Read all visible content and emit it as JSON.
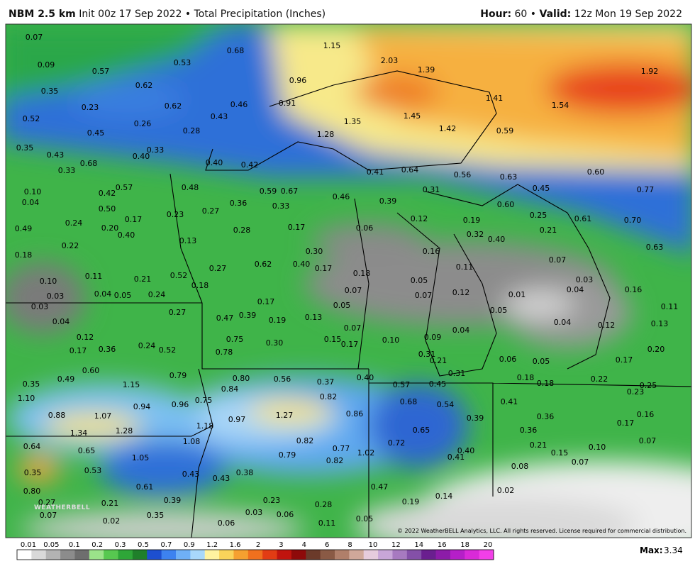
{
  "header": {
    "model": "NBM 2.5 km",
    "init": "Init 00z 17 Sep 2022",
    "separator": "•",
    "product": "Total Precipitation (Inches)",
    "hour_label": "Hour:",
    "hour": "60",
    "valid_label": "Valid:",
    "valid": "12z Mon 19 Sep 2022"
  },
  "footer": {
    "copyright": "© 2022 WeatherBELL Analytics, LLC. All rights reserved. License required for commercial distribution.",
    "logo": "WEATHERBELL",
    "max_label": "Max:",
    "max": "3.34"
  },
  "colorbar": {
    "ticks": [
      "0.01",
      "0.05",
      "0.1",
      "0.2",
      "0.3",
      "0.5",
      "0.7",
      "0.9",
      "1.2",
      "1.6",
      "2",
      "3",
      "4",
      "6",
      "8",
      "10",
      "12",
      "14",
      "16",
      "18",
      "20"
    ]
  },
  "map_labels": [
    "0.07",
    "0.09",
    "0.57",
    "0.53",
    "0.68",
    "1.15",
    "2.03",
    "1.39",
    "1.92",
    "0.35",
    "0.62",
    "0.96",
    "0.23",
    "0.62",
    "0.46",
    "0.91",
    "1.41",
    "1.54",
    "0.52",
    "0.26",
    "0.43",
    "1.45",
    "1.35",
    "1.42",
    "0.59",
    "0.45",
    "0.28",
    "1.28",
    "0.35",
    "0.43",
    "0.33",
    "0.40",
    "0.68",
    "0.40",
    "0.42",
    "0.33",
    "0.41",
    "0.64",
    "0.56",
    "0.63",
    "0.60",
    "0.10",
    "0.04",
    "0.42",
    "0.57",
    "0.48",
    "0.59",
    "0.67",
    "0.46",
    "0.31",
    "0.45",
    "0.77",
    "0.50",
    "0.36",
    "0.33",
    "0.39",
    "0.60",
    "0.49",
    "0.24",
    "0.20",
    "0.17",
    "0.23",
    "0.27",
    "0.40",
    "0.12",
    "0.25",
    "0.19",
    "0.61",
    "0.70",
    "0.28",
    "0.17",
    "0.06",
    "0.32",
    "0.21",
    "0.40",
    "0.13",
    "0.22",
    "0.18",
    "0.30",
    "0.16",
    "0.63",
    "0.07",
    "0.62",
    "0.40",
    "0.17",
    "0.27",
    "0.11",
    "0.11",
    "0.21",
    "0.52",
    "0.18",
    "0.03",
    "0.10",
    "0.18",
    "0.05",
    "0.01",
    "0.04",
    "0.16",
    "0.03",
    "0.04",
    "0.05",
    "0.24",
    "0.07",
    "0.07",
    "0.12",
    "0.03",
    "0.17",
    "0.05",
    "0.11",
    "0.27",
    "0.05",
    "0.04",
    "0.47",
    "0.39",
    "0.19",
    "0.13",
    "0.04",
    "0.13",
    "0.07",
    "0.04",
    "0.12",
    "0.12",
    "0.75",
    "0.30",
    "0.15",
    "0.17",
    "0.10",
    "0.09",
    "0.17",
    "0.36",
    "0.24",
    "0.52",
    "0.78",
    "0.31",
    "0.20",
    "0.21",
    "0.06",
    "0.05",
    "0.17",
    "0.60",
    "0.79",
    "0.31",
    "0.49",
    "0.80",
    "0.56",
    "0.37",
    "0.40",
    "0.18",
    "0.22",
    "0.35",
    "1.15",
    "0.84",
    "0.57",
    "0.45",
    "0.18",
    "0.25",
    "1.10",
    "0.82",
    "0.23",
    "0.94",
    "0.96",
    "0.75",
    "0.68",
    "0.54",
    "0.41",
    "0.88",
    "1.07",
    "1.27",
    "0.97",
    "0.86",
    "0.39",
    "0.36",
    "0.16",
    "1.18",
    "1.34",
    "1.28",
    "0.65",
    "0.17",
    "0.36",
    "0.07",
    "1.08",
    "0.82",
    "0.72",
    "0.64",
    "0.77",
    "0.21",
    "0.10",
    "0.65",
    "1.02",
    "0.79",
    "0.40",
    "0.15",
    "1.05",
    "0.82",
    "0.41",
    "0.07",
    "0.08",
    "0.53",
    "0.35",
    "0.43",
    "0.38",
    "0.43",
    "0.61",
    "0.47",
    "0.02",
    "0.80",
    "0.39",
    "0.23",
    "0.19",
    "0.14",
    "0.27",
    "0.21",
    "0.28",
    "0.07",
    "0.35",
    "0.03",
    "0.06",
    "0.02",
    "0.06",
    "0.11",
    "0.05"
  ]
}
